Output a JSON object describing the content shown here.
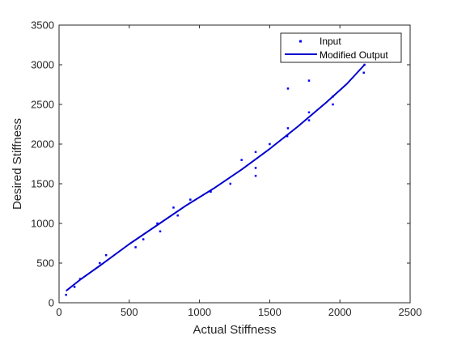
{
  "chart_data": {
    "type": "line",
    "title": "",
    "xlabel": "Actual Stiffness",
    "ylabel": "Desired Stiffness",
    "xlim": [
      0,
      2500
    ],
    "ylim": [
      0,
      3500
    ],
    "x_ticks": [
      0,
      500,
      1000,
      1500,
      2000,
      2500
    ],
    "y_ticks": [
      0,
      500,
      1000,
      1500,
      2000,
      2500,
      3000,
      3500
    ],
    "x_tick_labels": [
      "0",
      "500",
      "1000",
      "1500",
      "2000",
      "2500"
    ],
    "y_tick_labels": [
      "0",
      "500",
      "1000",
      "1500",
      "2000",
      "2500",
      "3000",
      "3500"
    ],
    "grid": false,
    "legend_position": "top-right",
    "series": [
      {
        "name": "Input",
        "style": "scatter",
        "color": "#0000ff",
        "x": [
          50,
          110,
          150,
          290,
          335,
          545,
          600,
          700,
          720,
          815,
          845,
          935,
          1080,
          1220,
          1300,
          1400,
          1400,
          1400,
          1500,
          1625,
          1630,
          1630,
          1780,
          1780,
          1780,
          1950,
          1950,
          2170,
          2175
        ],
        "y": [
          100,
          200,
          300,
          500,
          600,
          700,
          800,
          1000,
          900,
          1200,
          1100,
          1300,
          1400,
          1500,
          1800,
          1600,
          1700,
          1900,
          2000,
          2100,
          2200,
          2700,
          2300,
          2400,
          2800,
          2500,
          2600,
          2900,
          3000
        ]
      },
      {
        "name": "Modified Output",
        "style": "line",
        "color": "#0000cd",
        "x": [
          50,
          150,
          300,
          500,
          700,
          900,
          1100,
          1300,
          1500,
          1700,
          1900,
          2050,
          2175
        ],
        "y": [
          150,
          290,
          480,
          740,
          980,
          1220,
          1440,
          1680,
          1940,
          2220,
          2520,
          2760,
          3000
        ]
      }
    ]
  }
}
